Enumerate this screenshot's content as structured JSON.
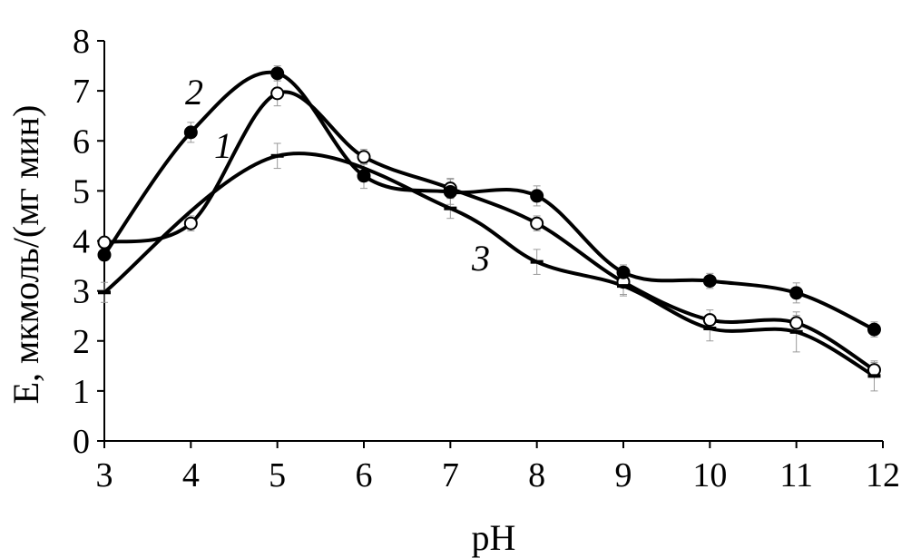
{
  "chart_data": {
    "type": "line",
    "title": "",
    "xlabel": "pH",
    "ylabel": "E, мкмоль/(мг мин)",
    "xlim": [
      3,
      12
    ],
    "ylim": [
      0,
      8
    ],
    "x_ticks": [
      "3",
      "4",
      "5",
      "6",
      "7",
      "8",
      "9",
      "10",
      "11",
      "12"
    ],
    "y_ticks": [
      "0",
      "1",
      "2",
      "3",
      "4",
      "5",
      "6",
      "7",
      "8"
    ],
    "grid": false,
    "series": [
      {
        "name": "1",
        "marker": "open-circle",
        "x": [
          3,
          4,
          5,
          6,
          7,
          8,
          9,
          10,
          11,
          11.9
        ],
        "y": [
          3.97,
          4.35,
          6.95,
          5.68,
          5.05,
          4.35,
          3.18,
          2.42,
          2.36,
          1.42
        ],
        "err": [
          0.1,
          0.15,
          0.25,
          0.15,
          0.2,
          0.15,
          0.25,
          0.2,
          0.15,
          0.15
        ]
      },
      {
        "name": "2",
        "marker": "filled-circle",
        "x": [
          3,
          4,
          5,
          6,
          7,
          8,
          9,
          10,
          11,
          11.9
        ],
        "y": [
          3.72,
          6.17,
          7.35,
          5.3,
          4.98,
          4.9,
          3.37,
          3.2,
          2.96,
          2.23
        ],
        "err": [
          0.1,
          0.2,
          0.15,
          0.25,
          0.25,
          0.2,
          0.15,
          0.15,
          0.2,
          0.15
        ]
      },
      {
        "name": "3",
        "marker": "dash",
        "x": [
          3,
          5,
          7,
          8,
          9,
          10,
          11,
          11.9
        ],
        "y": [
          2.97,
          5.7,
          4.65,
          3.58,
          3.1,
          2.25,
          2.18,
          1.3
        ],
        "err": [
          0.2,
          0.25,
          0.2,
          0.25,
          0.2,
          0.25,
          0.4,
          0.3
        ]
      }
    ],
    "annotations": [
      {
        "text": "1",
        "series": "1"
      },
      {
        "text": "2",
        "series": "2"
      },
      {
        "text": "3",
        "series": "3"
      }
    ]
  }
}
